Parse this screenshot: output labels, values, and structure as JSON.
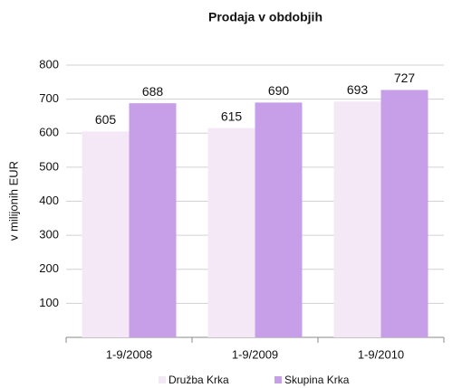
{
  "chart_data": {
    "type": "bar",
    "title": "Prodaja v obdobjih",
    "y_label": "v milijonih EUR",
    "categories": [
      "1-9/2008",
      "1-9/2009",
      "1-9/2010"
    ],
    "series": [
      {
        "name": "Družba Krka",
        "color": "#f4e8f7",
        "values": [
          605,
          615,
          693
        ]
      },
      {
        "name": "Skupina Krka",
        "color": "#c79ee8",
        "values": [
          688,
          690,
          727
        ]
      }
    ],
    "ylim": [
      0,
      800
    ],
    "yticks": [
      100,
      200,
      300,
      400,
      500,
      600,
      700,
      800
    ],
    "grid": true,
    "legend": "bottom"
  }
}
